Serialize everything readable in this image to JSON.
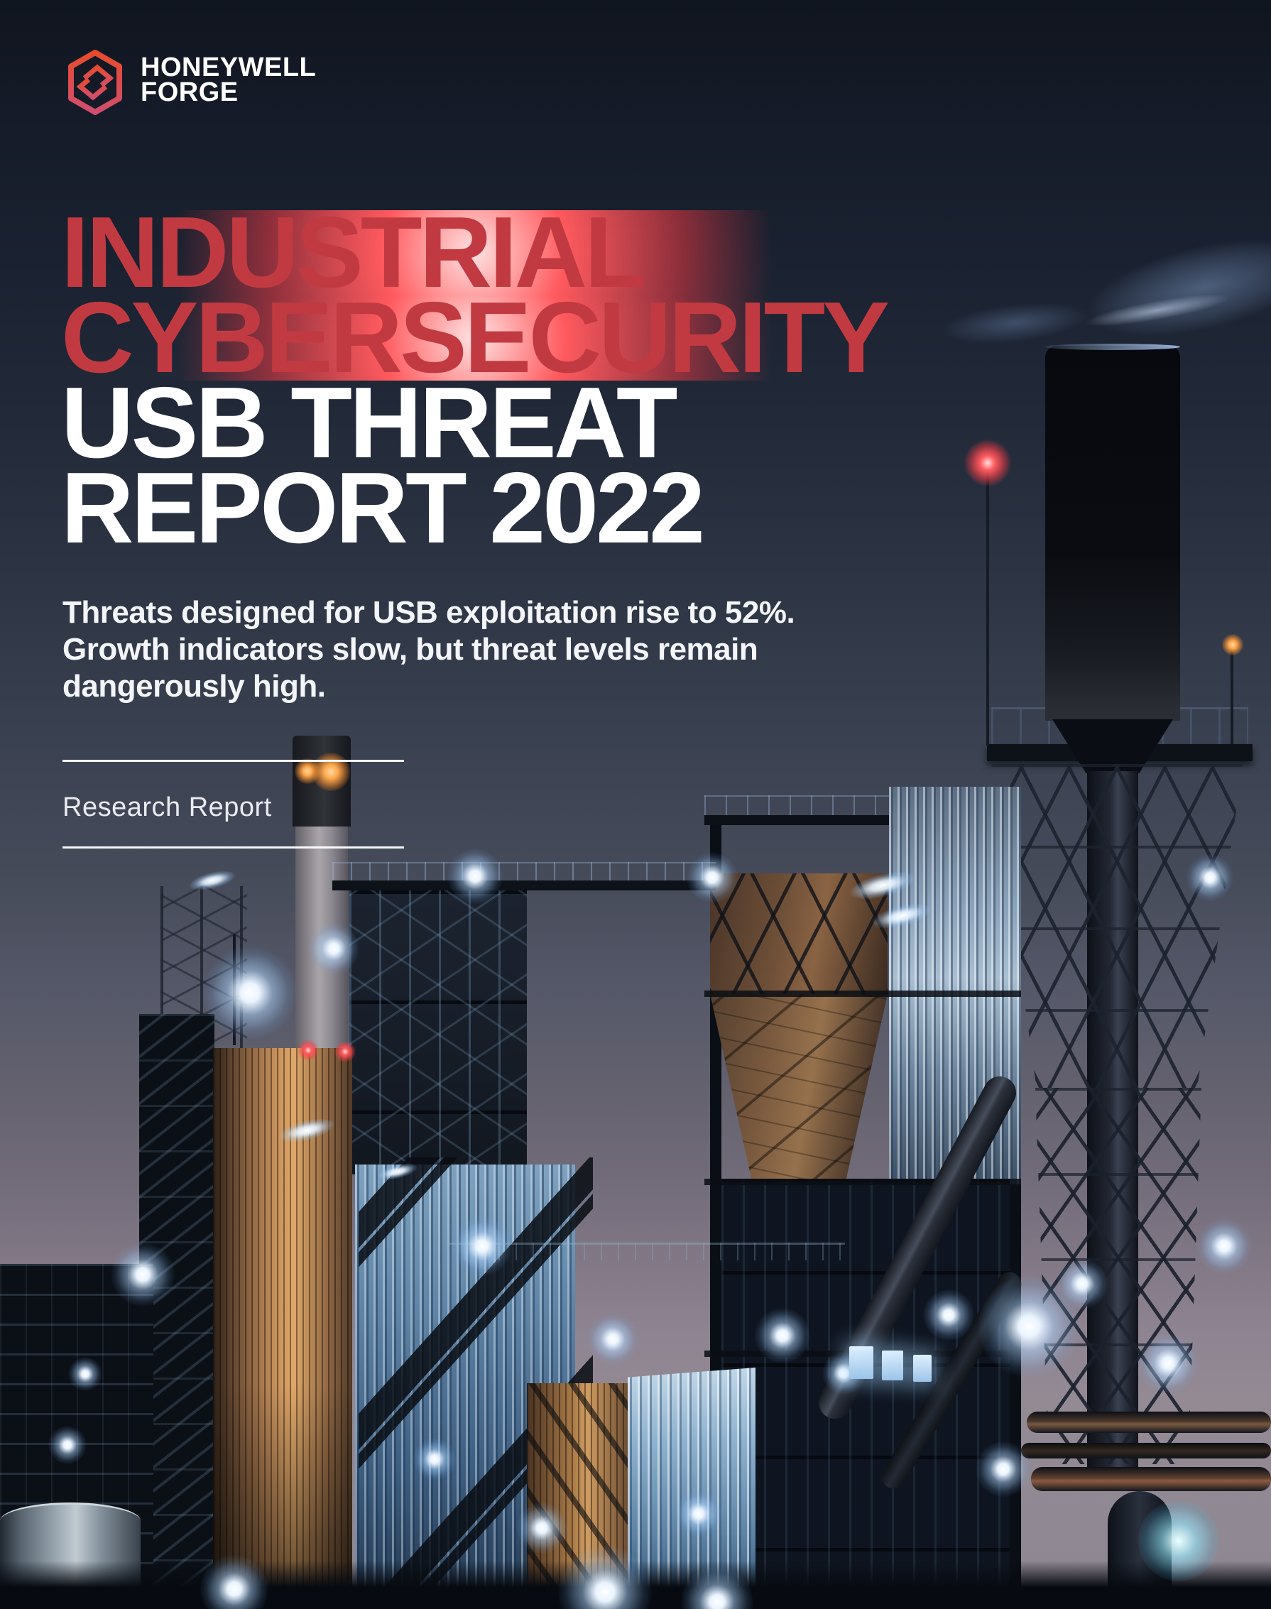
{
  "brand": {
    "line1": "HONEYWELL",
    "line2": "FORGE",
    "icon": "honeywell-forge-hexagon-icon"
  },
  "headline": {
    "lines": [
      "INDUSTRIAL",
      "CYBERSECURITY",
      "USB THREAT",
      "REPORT 2022"
    ]
  },
  "subtitle": {
    "lines": [
      "Threats designed for USB exploitation rise to 52%.",
      "Growth indicators slow, but threat levels remain",
      "dangerously high."
    ]
  },
  "tagline": {
    "label": "Research Report"
  },
  "palette": {
    "accent_red": "#c23a41",
    "headline_white": "#ffffff",
    "sky_top": "#10151f",
    "sky_horizon": "#938a94",
    "logo_gradient_top": "#e64b2d",
    "logo_gradient_bottom": "#d04e6d",
    "beacon_red": "#ff4a50",
    "floodlight_glow": "#eaf4ff"
  },
  "scene": {
    "lights": [
      [
        299,
        1240,
        14,
        "streak"
      ],
      [
        1243,
        1247,
        20,
        "streak"
      ],
      [
        432,
        1592,
        17,
        "streak"
      ],
      [
        560,
        1650,
        12,
        "streak"
      ],
      [
        669,
        1234,
        13,
        "dot"
      ],
      [
        1003,
        1236,
        12,
        "dot"
      ],
      [
        1704,
        1236,
        11,
        "dot"
      ],
      [
        352,
        1398,
        22,
        "dot"
      ],
      [
        470,
        1336,
        12,
        "dot"
      ],
      [
        201,
        1795,
        15,
        "dot"
      ],
      [
        679,
        1755,
        14,
        "dot"
      ],
      [
        863,
        1886,
        12,
        "dot"
      ],
      [
        1102,
        1881,
        13,
        "dot"
      ],
      [
        1336,
        1852,
        12,
        "dot"
      ],
      [
        1724,
        1755,
        13,
        "dot"
      ],
      [
        1645,
        1920,
        14,
        "dot"
      ],
      [
        1449,
        1868,
        24,
        "dot"
      ],
      [
        1524,
        1808,
        12,
        "dot"
      ],
      [
        612,
        2055,
        10,
        "dot"
      ],
      [
        763,
        2152,
        12,
        "dot"
      ],
      [
        984,
        2132,
        11,
        "dot"
      ],
      [
        1188,
        1934,
        10,
        "dot"
      ],
      [
        95,
        2035,
        9,
        "dot"
      ],
      [
        120,
        1935,
        8,
        "dot"
      ],
      [
        330,
        2238,
        16,
        "dot"
      ],
      [
        852,
        2242,
        22,
        "dot"
      ],
      [
        1010,
        2256,
        17,
        "dot"
      ],
      [
        1413,
        2069,
        13,
        "dot"
      ],
      [
        1270,
        1290,
        18,
        "streak"
      ],
      [
        1660,
        2170,
        19,
        "cyan"
      ],
      [
        433,
        1086,
        6,
        "amber"
      ],
      [
        466,
        1087,
        9,
        "amber"
      ],
      [
        1736,
        908,
        5,
        "amber"
      ],
      [
        1391,
        652,
        11,
        "red"
      ],
      [
        434,
        1479,
        5,
        "red"
      ],
      [
        486,
        1481,
        5,
        "red"
      ]
    ],
    "lit_windows": [
      [
        1196,
        1896,
        34,
        46
      ],
      [
        1242,
        1902,
        30,
        42
      ],
      [
        1286,
        1908,
        26,
        38
      ]
    ]
  }
}
